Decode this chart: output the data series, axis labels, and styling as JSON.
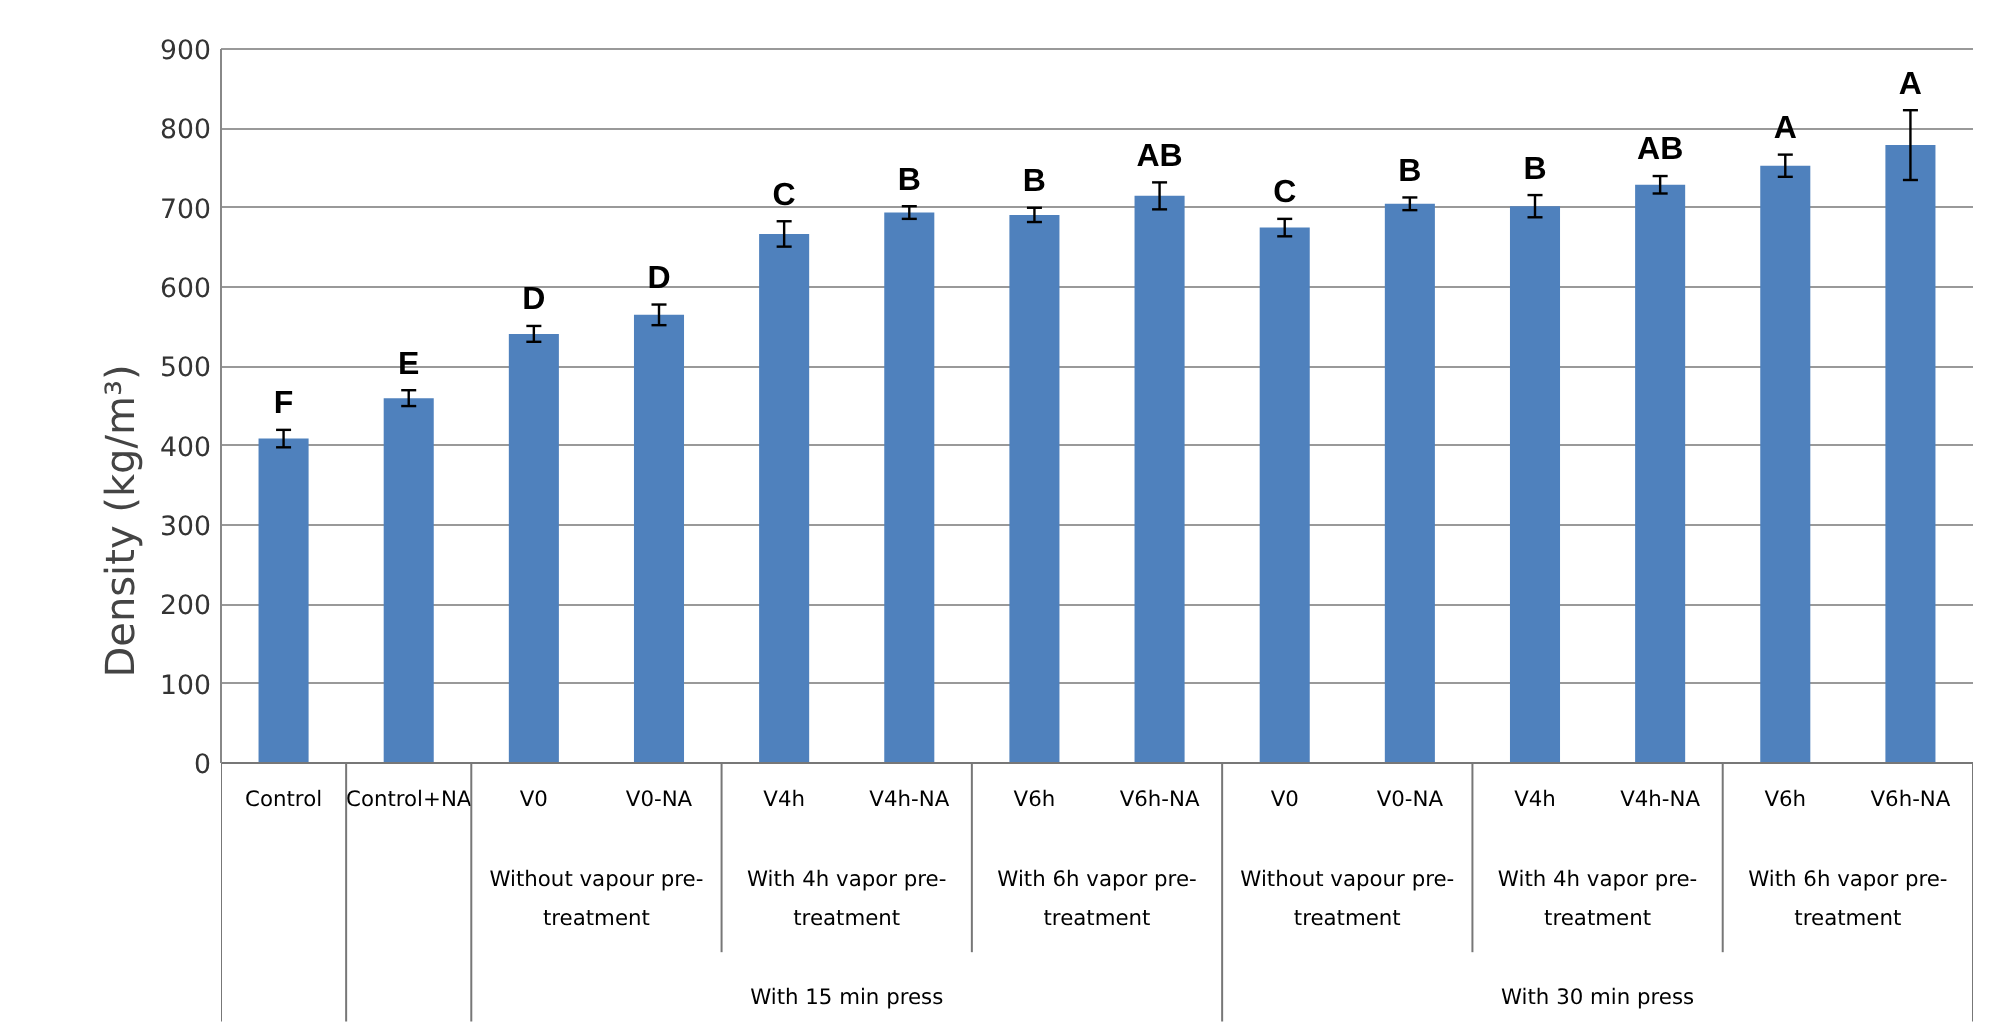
{
  "chart_data": {
    "type": "bar",
    "ylabel": "Density (kg/m³)",
    "categories": [
      "Control",
      "Control+NA",
      "V0",
      "V0-NA",
      "V4h",
      "V4h-NA",
      "V6h",
      "V6h-NA",
      "V0",
      "V0-NA",
      "V4h",
      "V4h-NA",
      "V6h",
      "V6h-NA"
    ],
    "values": [
      409,
      460,
      541,
      565,
      667,
      694,
      691,
      715,
      675,
      705,
      702,
      729,
      753,
      779
    ],
    "errors": [
      11,
      10,
      10,
      13,
      16,
      8,
      9,
      17,
      11,
      8,
      14,
      11,
      14,
      44
    ],
    "value_labels": [
      "F",
      "E",
      "D",
      "D",
      "C",
      "B",
      "B",
      "AB",
      "C",
      "B",
      "B",
      "AB",
      "A",
      "A"
    ],
    "color": "#4f81bd",
    "ylim": [
      0,
      900
    ],
    "yticks": [
      0,
      100,
      200,
      300,
      400,
      500,
      600,
      700,
      800,
      900
    ],
    "grid": "y",
    "annotations": [
      "Without vapour pre-treatment",
      "With 4h vapor pre-treatment",
      "With 6h vapor pre-treatment",
      "Without vapour pre-treatment",
      "With 4h vapor pre-treatment",
      "With 6h vapor pre-treatment",
      "With 15 min press",
      "With 30 min press"
    ]
  }
}
